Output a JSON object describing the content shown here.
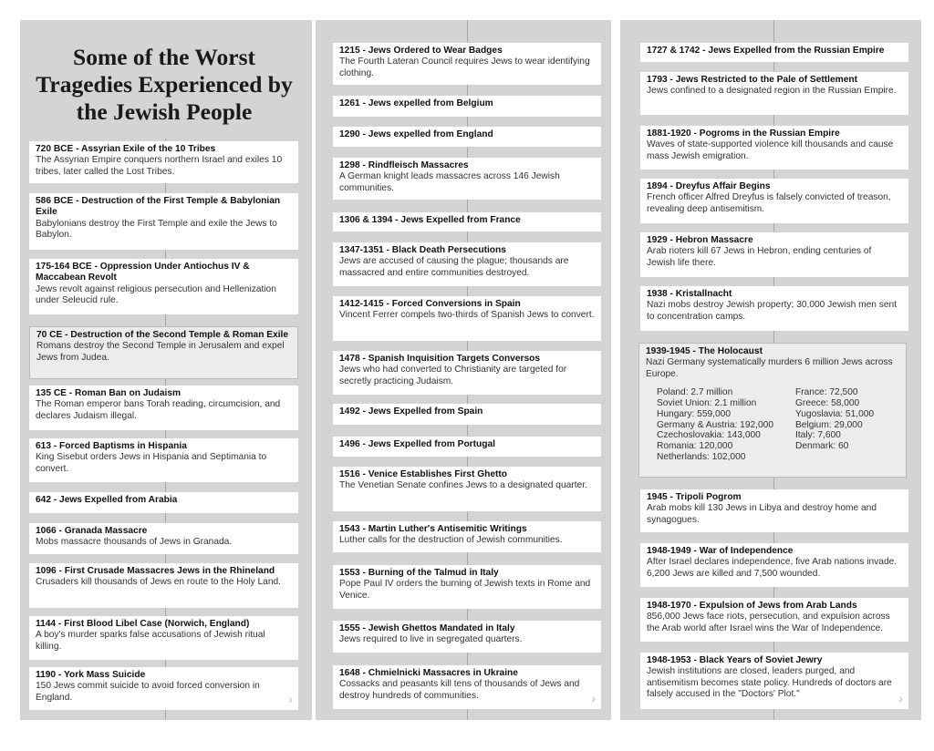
{
  "title": "Some of the Worst Tragedies Experienced by the Jewish People",
  "left": [
    {
      "t": "720 BCE - Assyrian Exile of the 10 Tribes",
      "d": "The Assyrian Empire conquers northern Israel and exiles 10 tribes, later called the Lost Tribes."
    },
    {
      "t": "586 BCE - Destruction of the First Temple & Babylonian Exile",
      "d": "Babylonians destroy the First Temple and exile the Jews to Babylon."
    },
    {
      "t": "175-164 BCE - Oppression Under Antiochus IV & Maccabean Revolt",
      "d": "Jews revolt against religious persecution and Hellenization under Seleucid rule."
    },
    {
      "t": "70 CE - Destruction of the Second Temple & Roman Exile",
      "d": "Romans destroy the Second Temple in Jerusalem and expel Jews from Judea."
    },
    {
      "t": "135 CE - Roman Ban on Judaism",
      "d": "The Roman emperor bans Torah reading, circumcision, and declares Judaism illegal."
    },
    {
      "t": "613 - Forced Baptisms in Hispania",
      "d": "King Sisebut orders Jews in Hispania and Septimania to convert."
    },
    {
      "t": "642 - Jews Expelled from Arabia",
      "d": ""
    },
    {
      "t": "1066 - Granada Massacre",
      "d": "Mobs massacre thousands of Jews in Granada."
    },
    {
      "t": "1096 - First Crusade Massacres Jews in the Rhineland",
      "d": "Crusaders kill thousands of Jews en route to the Holy Land."
    },
    {
      "t": "1144 - First Blood Libel Case (Norwich, England)",
      "d": "A boy's murder sparks false accusations of Jewish ritual killing."
    },
    {
      "t": "1190 - York Mass Suicide",
      "d": "150 Jews commit suicide to avoid forced conversion in England."
    }
  ],
  "middle": [
    {
      "t": "1215 - Jews Ordered to Wear Badges",
      "d": "The Fourth Lateran Council requires Jews to wear identifying clothing."
    },
    {
      "t": "1261 - Jews expelled from Belgium",
      "d": ""
    },
    {
      "t": "1290 - Jews expelled from England",
      "d": ""
    },
    {
      "t": "1298 - Rindfleisch Massacres",
      "d": "A German knight leads massacres across 146 Jewish communities."
    },
    {
      "t": "1306 & 1394 - Jews Expelled from France",
      "d": ""
    },
    {
      "t": "1347-1351 - Black Death Persecutions",
      "d": "Jews are accused of causing the plague; thousands are massacred and entire communities destroyed."
    },
    {
      "t": "1412-1415 - Forced Conversions in Spain",
      "d": "Vincent Ferrer compels two-thirds of Spanish Jews to convert."
    },
    {
      "t": "1478 - Spanish Inquisition Targets Conversos",
      "d": "Jews who had converted to Christianity are targeted for secretly practicing Judaism."
    },
    {
      "t": "1492 - Jews Expelled from Spain",
      "d": ""
    },
    {
      "t": "1496 - Jews Expelled from Portugal",
      "d": ""
    },
    {
      "t": "1516 - Venice Establishes First Ghetto",
      "d": "The Venetian Senate confines Jews to a designated quarter."
    },
    {
      "t": "1543 - Martin Luther's Antisemitic Writings",
      "d": "Luther calls for the destruction of Jewish communities."
    },
    {
      "t": "1553 - Burning of the Talmud in Italy",
      "d": "Pope Paul IV orders the burning of Jewish texts in Rome and Venice."
    },
    {
      "t": "1555 - Jewish Ghettos Mandated in Italy",
      "d": "Jews required to live in segregated quarters."
    },
    {
      "t": "1648 - Chmielnicki Massacres in Ukraine",
      "d": "Cossacks and peasants kill tens of thousands of Jews and destroy hundreds of communities."
    }
  ],
  "right": [
    {
      "t": "1727 & 1742 - Jews Expelled from the Russian Empire",
      "d": ""
    },
    {
      "t": "1793 - Jews Restricted to the Pale of Settlement",
      "d": "Jews confined to a designated region in the Russian Empire."
    },
    {
      "t": "1881-1920 - Pogroms in the Russian Empire",
      "d": "Waves of state-supported violence kill thousands and cause mass Jewish emigration."
    },
    {
      "t": "1894 - Dreyfus Affair Begins",
      "d": "French officer Alfred Dreyfus is falsely convicted of treason, revealing deep antisemitism."
    },
    {
      "t": "1929 - Hebron Massacre",
      "d": "Arab rioters kill 67 Jews in Hebron, ending centuries of Jewish life there."
    },
    {
      "t": "1938 - Kristallnacht",
      "d": "Nazi mobs destroy Jewish property; 30,000 Jewish men sent to concentration camps."
    },
    {
      "t": "1939-1945 - The Holocaust",
      "d": "Nazi Germany systematically murders 6 million Jews across Europe."
    },
    {
      "t": "1945 - Tripoli Pogrom",
      "d": "Arab mobs kill 130 Jews in Libya and destroy home and synagogues."
    },
    {
      "t": "1948-1949 - War of Independence",
      "d": "After Israel declares independence, five Arab nations invade. 6,200 Jews are killed and 7,500 wounded."
    },
    {
      "t": "1948-1970 - Expulsion of Jews from Arab Lands",
      "d": "856,000 Jews face riots, persecution, and expulsion across the Arab world after Israel wins the War of Independence."
    },
    {
      "t": "1948-1953 - Black Years of Soviet Jewry",
      "d": "Jewish institutions are closed, leaders purged, and antisemitism becomes state policy. Hundreds of doctors are falsely accused in the \"Doctors' Plot.\""
    }
  ],
  "holocaust_stats": {
    "col1": [
      "Poland: 2.7 million",
      "Soviet Union: 2.1 million",
      "Hungary: 559,000",
      "Germany & Austria: 192,000",
      "Czechoslovakia: 143,000",
      "Romania: 120,000",
      "Netherlands: 102,000"
    ],
    "col2": [
      "France: 72,500",
      "Greece: 58,000",
      "Yugoslavia: 51,000",
      "Belgium: 29,000",
      "Italy: 7,600",
      "Denmark: 60"
    ]
  },
  "chevron_icon": "chevron-right-icon"
}
